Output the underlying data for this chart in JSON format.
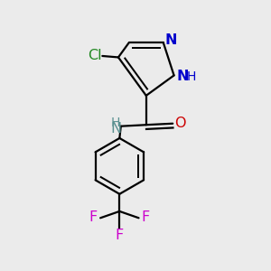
{
  "bg_color": "#ebebeb",
  "bond_color": "#000000",
  "bond_width": 1.6,
  "figsize": [
    3.0,
    3.0
  ],
  "dpi": 100,
  "colors": {
    "N": "#0000cc",
    "Cl": "#228822",
    "O": "#cc0000",
    "NH_amide": "#5a9090",
    "F": "#cc00cc",
    "C": "#000000"
  }
}
